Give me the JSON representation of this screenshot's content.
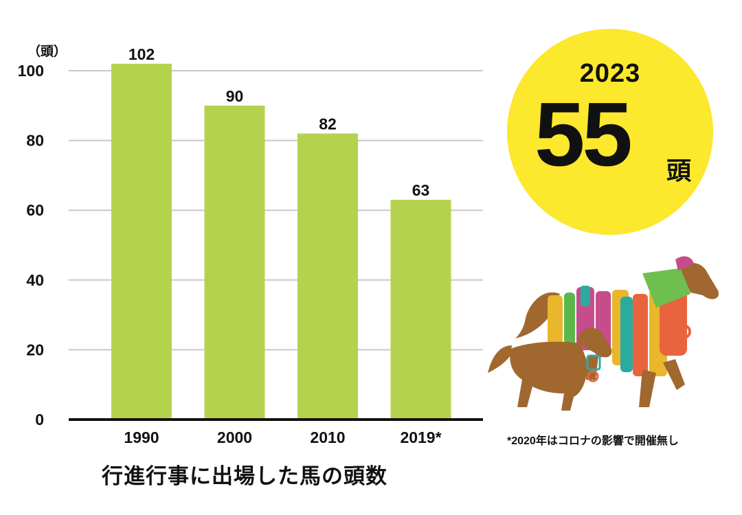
{
  "chart_data": {
    "type": "bar",
    "unit_label": "（頭）",
    "categories": [
      "1990",
      "2000",
      "2010",
      "2019*"
    ],
    "values": [
      102,
      90,
      82,
      63
    ],
    "value_labels": [
      "102",
      "90",
      "82",
      "63"
    ],
    "xlabel": "行進行事に出場した馬の頭数",
    "ylim": [
      0,
      100
    ],
    "yticks": [
      0,
      20,
      40,
      60,
      80,
      100
    ],
    "grid": true,
    "bar_color": "#B5D24F"
  },
  "highlight": {
    "year": "2023",
    "count": "55",
    "unit": "頭",
    "color": "#FCE82C"
  },
  "footnote": "*2020年はコロナの影響で開催無し",
  "illustration": {
    "icon": "horses-icon"
  }
}
